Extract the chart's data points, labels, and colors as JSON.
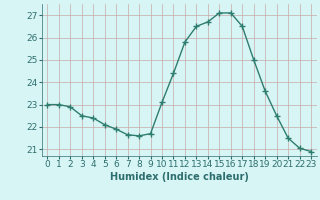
{
  "x": [
    0,
    1,
    2,
    3,
    4,
    5,
    6,
    7,
    8,
    9,
    10,
    11,
    12,
    13,
    14,
    15,
    16,
    17,
    18,
    19,
    20,
    21,
    22,
    23
  ],
  "y": [
    23.0,
    23.0,
    22.9,
    22.5,
    22.4,
    22.1,
    21.9,
    21.65,
    21.6,
    21.7,
    23.1,
    24.4,
    25.8,
    26.5,
    26.7,
    27.1,
    27.1,
    26.5,
    25.0,
    23.6,
    22.5,
    21.5,
    21.05,
    20.9
  ],
  "line_color": "#2e7d6e",
  "marker": "+",
  "marker_size": 4,
  "marker_linewidth": 1.0,
  "bg_color": "#d8f5f5",
  "grid_color": "#c8a8a8",
  "xlabel": "Humidex (Indice chaleur)",
  "ylim": [
    20.7,
    27.5
  ],
  "yticks": [
    21,
    22,
    23,
    24,
    25,
    26,
    27
  ],
  "xticks": [
    0,
    1,
    2,
    3,
    4,
    5,
    6,
    7,
    8,
    9,
    10,
    11,
    12,
    13,
    14,
    15,
    16,
    17,
    18,
    19,
    20,
    21,
    22,
    23
  ],
  "xlabel_fontsize": 7,
  "tick_fontsize": 6.5,
  "tick_color": "#2e6e6e",
  "line_width": 1.0
}
